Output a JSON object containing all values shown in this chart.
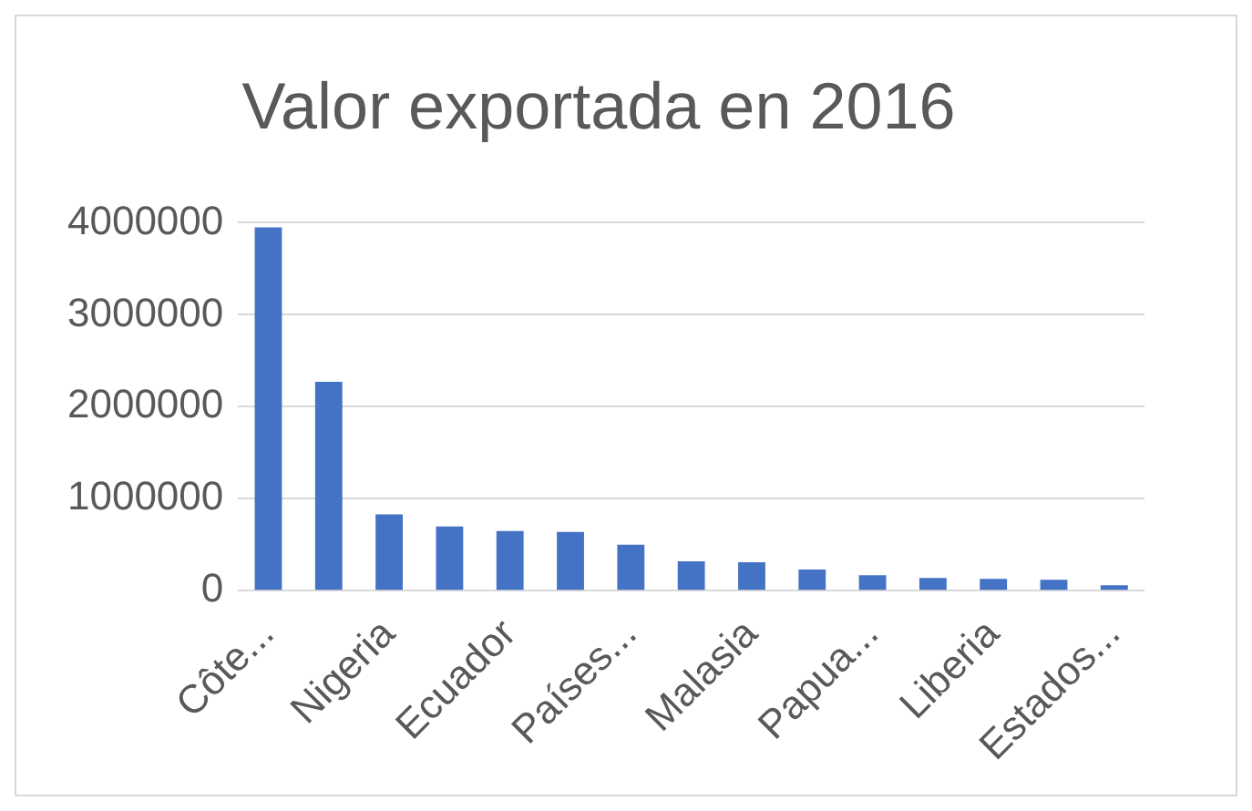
{
  "chart_data": {
    "type": "bar",
    "title": "Valor exportada en 2016",
    "categories": [
      "Côte...",
      null,
      "Nigeria",
      null,
      "Ecuador",
      null,
      "Países...",
      null,
      "Malasia",
      null,
      "Papua...",
      null,
      "Liberia",
      null,
      "Estados..."
    ],
    "values": [
      3950000,
      2270000,
      830000,
      700000,
      650000,
      640000,
      500000,
      320000,
      310000,
      230000,
      170000,
      140000,
      130000,
      120000,
      60000
    ],
    "color": "#4472c4",
    "ylim": [
      0,
      4000000
    ],
    "yticks": [
      0,
      1000000,
      2000000,
      3000000,
      4000000
    ],
    "grid": "y",
    "legend": false
  }
}
